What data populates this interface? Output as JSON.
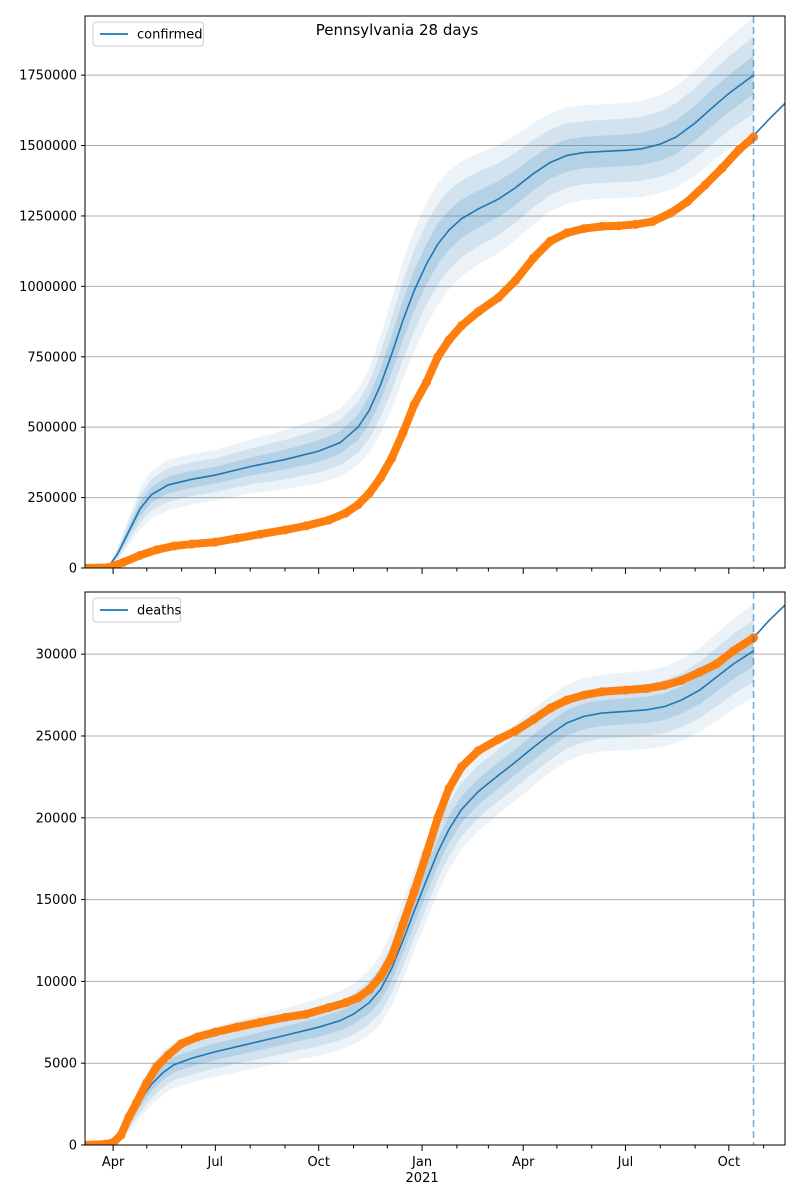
{
  "chart_data": [
    {
      "type": "line",
      "title": "Pennsylvania 28 days",
      "legend": {
        "entries": [
          "confirmed"
        ],
        "placement": "top-left"
      },
      "grid": {
        "y": true,
        "x": false
      },
      "xlim": [
        "2020-03-07",
        "2021-11-20"
      ],
      "ylim": [
        0,
        1960000
      ],
      "y_ticks": [
        0,
        250000,
        500000,
        750000,
        1000000,
        1250000,
        1500000,
        1750000
      ],
      "y_tick_labels": [
        "0",
        "250000",
        "500000",
        "750000",
        "1000000",
        "1250000",
        "1500000",
        "1750000"
      ],
      "forecast_date": "2021-10-23",
      "series": [
        {
          "name": "confirmed",
          "kind": "model",
          "color": "#1f77b4",
          "x": [
            "2020-03-07",
            "2020-03-28",
            "2020-04-05",
            "2020-04-15",
            "2020-04-25",
            "2020-05-05",
            "2020-05-20",
            "2020-06-10",
            "2020-07-01",
            "2020-08-01",
            "2020-09-01",
            "2020-10-01",
            "2020-10-20",
            "2020-11-05",
            "2020-11-15",
            "2020-11-25",
            "2020-12-05",
            "2020-12-15",
            "2020-12-25",
            "2021-01-05",
            "2021-01-15",
            "2021-01-25",
            "2021-02-05",
            "2021-02-20",
            "2021-03-10",
            "2021-03-25",
            "2021-04-10",
            "2021-04-25",
            "2021-05-10",
            "2021-05-25",
            "2021-06-15",
            "2021-07-01",
            "2021-07-15",
            "2021-08-01",
            "2021-08-15",
            "2021-09-01",
            "2021-09-15",
            "2021-10-01",
            "2021-10-23"
          ],
          "y": [
            2000,
            5000,
            50000,
            130000,
            210000,
            260000,
            295000,
            315000,
            330000,
            360000,
            385000,
            415000,
            445000,
            500000,
            560000,
            650000,
            760000,
            880000,
            985000,
            1080000,
            1150000,
            1200000,
            1240000,
            1275000,
            1310000,
            1350000,
            1400000,
            1440000,
            1465000,
            1475000,
            1480000,
            1483000,
            1488000,
            1505000,
            1530000,
            1580000,
            1630000,
            1685000,
            1750000
          ],
          "band_widths": [
            [
              0,
              0,
              8000,
              16000,
              25000,
              28000,
              30000,
              30000,
              30000,
              32000,
              35000,
              38000,
              40000,
              45000,
              50000,
              58000,
              65000,
              70000,
              72000,
              72000,
              72000,
              70000,
              68000,
              66000,
              64000,
              62000,
              60000,
              58000,
              57000,
              56000,
              56000,
              56000,
              57000,
              58000,
              60000,
              62000,
              64000,
              66000,
              68000
            ],
            [
              0,
              0,
              16000,
              32000,
              50000,
              56000,
              60000,
              60000,
              60000,
              64000,
              70000,
              76000,
              80000,
              90000,
              100000,
              116000,
              130000,
              140000,
              144000,
              144000,
              144000,
              140000,
              136000,
              132000,
              128000,
              124000,
              120000,
              116000,
              114000,
              112000,
              112000,
              112000,
              114000,
              116000,
              120000,
              124000,
              128000,
              132000,
              136000
            ],
            [
              0,
              0,
              24000,
              48000,
              75000,
              84000,
              90000,
              90000,
              90000,
              96000,
              105000,
              114000,
              120000,
              135000,
              150000,
              174000,
              195000,
              210000,
              216000,
              216000,
              216000,
              210000,
              204000,
              198000,
              192000,
              186000,
              180000,
              174000,
              171000,
              168000,
              168000,
              168000,
              171000,
              174000,
              180000,
              186000,
              192000,
              198000,
              204000
            ]
          ]
        },
        {
          "name": "",
          "kind": "projection",
          "color": "#1f77b4",
          "x": [
            "2021-10-23",
            "2021-11-05",
            "2021-11-20"
          ],
          "y": [
            1535000,
            1590000,
            1650000
          ]
        },
        {
          "name": "",
          "kind": "observed",
          "color": "#ff7f0e",
          "x": [
            "2020-03-07",
            "2020-03-28",
            "2020-04-10",
            "2020-04-25",
            "2020-05-10",
            "2020-05-25",
            "2020-06-10",
            "2020-07-01",
            "2020-07-20",
            "2020-08-10",
            "2020-09-01",
            "2020-09-20",
            "2020-10-10",
            "2020-10-25",
            "2020-11-05",
            "2020-11-15",
            "2020-11-25",
            "2020-12-05",
            "2020-12-15",
            "2020-12-25",
            "2021-01-05",
            "2021-01-15",
            "2021-01-25",
            "2021-02-05",
            "2021-02-20",
            "2021-03-10",
            "2021-03-25",
            "2021-04-10",
            "2021-04-25",
            "2021-05-10",
            "2021-05-25",
            "2021-06-10",
            "2021-06-25",
            "2021-07-10",
            "2021-07-25",
            "2021-08-10",
            "2021-08-25",
            "2021-09-10",
            "2021-09-25",
            "2021-10-10",
            "2021-10-23"
          ],
          "y": [
            0,
            2000,
            20000,
            45000,
            65000,
            78000,
            85000,
            92000,
            105000,
            120000,
            135000,
            150000,
            170000,
            195000,
            225000,
            265000,
            320000,
            390000,
            480000,
            580000,
            660000,
            750000,
            810000,
            860000,
            910000,
            960000,
            1020000,
            1100000,
            1160000,
            1190000,
            1205000,
            1213000,
            1215000,
            1220000,
            1230000,
            1260000,
            1300000,
            1360000,
            1420000,
            1485000,
            1530000
          ]
        }
      ]
    },
    {
      "type": "line",
      "title": "",
      "legend": {
        "entries": [
          "deaths"
        ],
        "placement": "top-left"
      },
      "grid": {
        "y": true,
        "x": false
      },
      "xlim": [
        "2020-03-07",
        "2021-11-20"
      ],
      "ylim": [
        0,
        33800
      ],
      "y_ticks": [
        0,
        5000,
        10000,
        15000,
        20000,
        25000,
        30000
      ],
      "y_tick_labels": [
        "0",
        "5000",
        "10000",
        "15000",
        "20000",
        "25000",
        "30000"
      ],
      "x_ticks": [
        "2020-04-01",
        "2020-07-01",
        "2020-10-01",
        "2021-01-01",
        "2021-04-01",
        "2021-07-01",
        "2021-10-01"
      ],
      "x_tick_labels": [
        "Apr",
        "Jul",
        "Oct",
        "Jan",
        "Apr",
        "Jul",
        "Oct"
      ],
      "x_year_label": "2021",
      "forecast_date": "2021-10-23",
      "series": [
        {
          "name": "deaths",
          "kind": "model",
          "color": "#1f77b4",
          "x": [
            "2020-03-07",
            "2020-03-28",
            "2020-04-05",
            "2020-04-15",
            "2020-04-25",
            "2020-05-05",
            "2020-05-15",
            "2020-05-25",
            "2020-06-10",
            "2020-07-01",
            "2020-08-01",
            "2020-09-01",
            "2020-10-01",
            "2020-10-20",
            "2020-11-01",
            "2020-11-15",
            "2020-11-25",
            "2020-12-05",
            "2020-12-15",
            "2020-12-25",
            "2021-01-05",
            "2021-01-15",
            "2021-01-25",
            "2021-02-05",
            "2021-02-20",
            "2021-03-10",
            "2021-03-25",
            "2021-04-10",
            "2021-04-25",
            "2021-05-10",
            "2021-05-25",
            "2021-06-10",
            "2021-07-01",
            "2021-07-20",
            "2021-08-05",
            "2021-08-20",
            "2021-09-05",
            "2021-09-20",
            "2021-10-05",
            "2021-10-23"
          ],
          "y": [
            0,
            50,
            300,
            1400,
            2700,
            3700,
            4400,
            4900,
            5300,
            5700,
            6200,
            6700,
            7200,
            7600,
            8000,
            8700,
            9500,
            10800,
            12500,
            14300,
            16200,
            17900,
            19300,
            20500,
            21600,
            22600,
            23400,
            24300,
            25100,
            25800,
            26200,
            26400,
            26500,
            26600,
            26800,
            27200,
            27800,
            28600,
            29400,
            30200
          ],
          "band_widths": [
            [
              0,
              0,
              100,
              200,
              350,
              420,
              450,
              470,
              490,
              510,
              530,
              550,
              580,
              600,
              620,
              660,
              710,
              760,
              800,
              820,
              830,
              830,
              820,
              810,
              800,
              790,
              780,
              780,
              780,
              780,
              780,
              780,
              790,
              800,
              810,
              830,
              860,
              890,
              920,
              950
            ],
            [
              0,
              0,
              200,
              400,
              700,
              840,
              900,
              940,
              980,
              1020,
              1060,
              1100,
              1160,
              1200,
              1240,
              1320,
              1420,
              1520,
              1600,
              1640,
              1660,
              1660,
              1640,
              1620,
              1600,
              1580,
              1560,
              1560,
              1560,
              1560,
              1560,
              1560,
              1580,
              1600,
              1620,
              1660,
              1720,
              1780,
              1840,
              1900
            ],
            [
              0,
              0,
              300,
              600,
              1050,
              1260,
              1350,
              1410,
              1470,
              1530,
              1590,
              1650,
              1740,
              1800,
              1860,
              1980,
              2130,
              2280,
              2400,
              2460,
              2490,
              2490,
              2460,
              2430,
              2400,
              2370,
              2340,
              2340,
              2340,
              2340,
              2340,
              2340,
              2370,
              2400,
              2430,
              2490,
              2580,
              2670,
              2760,
              2850
            ]
          ]
        },
        {
          "name": "",
          "kind": "projection",
          "color": "#1f77b4",
          "x": [
            "2021-10-23",
            "2021-11-05",
            "2021-11-20"
          ],
          "y": [
            31000,
            32000,
            33000
          ]
        },
        {
          "name": "",
          "kind": "observed",
          "color": "#ff7f0e",
          "x": [
            "2020-03-07",
            "2020-03-25",
            "2020-04-01",
            "2020-04-08",
            "2020-04-15",
            "2020-04-22",
            "2020-05-01",
            "2020-05-10",
            "2020-05-20",
            "2020-06-01",
            "2020-06-15",
            "2020-07-01",
            "2020-07-20",
            "2020-08-10",
            "2020-09-01",
            "2020-09-20",
            "2020-10-10",
            "2020-10-25",
            "2020-11-05",
            "2020-11-15",
            "2020-11-25",
            "2020-12-05",
            "2020-12-15",
            "2020-12-25",
            "2021-01-05",
            "2021-01-15",
            "2021-01-25",
            "2021-02-05",
            "2021-02-20",
            "2021-03-10",
            "2021-03-25",
            "2021-04-10",
            "2021-04-25",
            "2021-05-10",
            "2021-05-25",
            "2021-06-10",
            "2021-07-01",
            "2021-07-20",
            "2021-08-05",
            "2021-08-20",
            "2021-09-05",
            "2021-09-20",
            "2021-10-05",
            "2021-10-23"
          ],
          "y": [
            0,
            50,
            150,
            600,
            1700,
            2600,
            3800,
            4800,
            5500,
            6200,
            6600,
            6900,
            7200,
            7500,
            7800,
            8000,
            8400,
            8700,
            9000,
            9500,
            10300,
            11500,
            13500,
            15500,
            17800,
            20000,
            21800,
            23100,
            24100,
            24800,
            25300,
            26000,
            26700,
            27200,
            27500,
            27700,
            27800,
            27900,
            28100,
            28400,
            28900,
            29400,
            30200,
            31000
          ]
        }
      ]
    }
  ]
}
